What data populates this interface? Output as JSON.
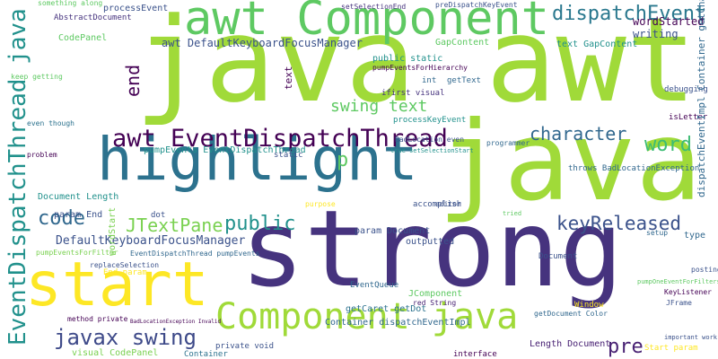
{
  "words": [
    "java awt",
    "strong",
    "java",
    "awt Component",
    "highlight",
    "start",
    "Component java",
    "EventDispatchThread java",
    "awt EventDispatchThread",
    "dispatchEvent",
    "character",
    "word",
    "keyReleased",
    "code",
    "public",
    "JTextPane",
    "DefaultKeyboardFocusManager",
    "javax swing",
    "pre",
    "end",
    "p",
    "swing text",
    "awt DefaultKeyboardFocusManager",
    "wordStarted",
    "writing",
    "processEvent",
    "AbstractDocument",
    "CodePanel",
    "GapContent",
    "public static",
    "pumpEventsForHierarchy",
    "getText",
    "int",
    "ifirst visual",
    "processKeyEvent",
    "text",
    "pumpEvents EventDispatchThread",
    "Document Length",
    "param End",
    "EventDispatchThread pumpEvents",
    "replaceSelection",
    "End param",
    "param Document",
    "outputted",
    "EventQueue",
    "JComponent",
    "getCaret getDot",
    "Container dispatchEventImpl",
    "Length Document",
    "getDocument Color",
    "Window",
    "Document",
    "type",
    "debugging",
    "isLetter",
    "text GapContent",
    "preDispatchKeyEvent",
    "setSelectionEnd",
    "Container",
    "private void",
    "visual CodePanel",
    "pumpEventsForFilter",
    "method private",
    "BadLocationException Invalid",
    "posting",
    "KeyListener",
    "pumpOneEventForFilters",
    "JFrame",
    "Start param",
    "important work",
    "interface",
    "something along",
    "keep getting",
    "problem",
    "even though",
    "static",
    "accomplish",
    "throws BadLocationException",
    "dispatchEventImpl Container getChars",
    "setup",
    "purpose",
    "programmer",
    "true setSelectionStart",
    "BadLocation even",
    "editor",
    "tried",
    "wordStart",
    "red String",
    "dot"
  ]
}
